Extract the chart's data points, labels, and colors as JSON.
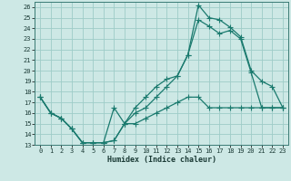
{
  "xlabel": "Humidex (Indice chaleur)",
  "bg_color": "#cde8e5",
  "grid_color": "#9eccc8",
  "line_color": "#1a7a6e",
  "xlim": [
    -0.5,
    23.5
  ],
  "ylim": [
    13,
    26.5
  ],
  "xticks": [
    0,
    1,
    2,
    3,
    4,
    5,
    6,
    7,
    8,
    9,
    10,
    11,
    12,
    13,
    14,
    15,
    16,
    17,
    18,
    19,
    20,
    21,
    22,
    23
  ],
  "yticks": [
    13,
    14,
    15,
    16,
    17,
    18,
    19,
    20,
    21,
    22,
    23,
    24,
    25,
    26
  ],
  "line1_x": [
    0,
    1,
    2,
    3,
    4,
    5,
    6,
    7,
    8,
    9,
    10,
    11,
    12,
    13,
    14,
    15,
    16,
    17,
    18,
    19,
    20,
    21,
    22,
    23
  ],
  "line1_y": [
    17.5,
    16.0,
    15.5,
    14.5,
    13.2,
    13.2,
    13.2,
    13.4,
    15.0,
    16.5,
    17.5,
    18.5,
    19.2,
    19.5,
    21.5,
    26.2,
    25.0,
    24.8,
    24.1,
    23.2,
    20.0,
    19.0,
    18.5,
    16.5
  ],
  "line2_x": [
    0,
    1,
    2,
    3,
    4,
    5,
    6,
    7,
    8,
    9,
    10,
    11,
    12,
    13,
    14,
    15,
    16,
    17,
    18,
    19,
    20,
    21,
    22,
    23
  ],
  "line2_y": [
    17.5,
    16.0,
    15.5,
    14.5,
    13.2,
    13.2,
    13.2,
    13.4,
    15.0,
    16.0,
    16.5,
    17.5,
    18.5,
    19.5,
    21.5,
    24.8,
    24.2,
    23.5,
    23.8,
    23.0,
    19.8,
    16.5,
    16.5,
    16.5
  ],
  "line3_x": [
    0,
    1,
    2,
    3,
    4,
    5,
    6,
    7,
    8,
    9,
    10,
    11,
    12,
    13,
    14,
    15,
    16,
    17,
    18,
    19,
    20,
    21,
    22,
    23
  ],
  "line3_y": [
    17.5,
    16.0,
    15.5,
    14.5,
    13.2,
    13.2,
    13.2,
    16.5,
    15.0,
    15.0,
    15.5,
    16.0,
    16.5,
    17.0,
    17.5,
    17.5,
    16.5,
    16.5,
    16.5,
    16.5,
    16.5,
    16.5,
    16.5,
    16.5
  ]
}
